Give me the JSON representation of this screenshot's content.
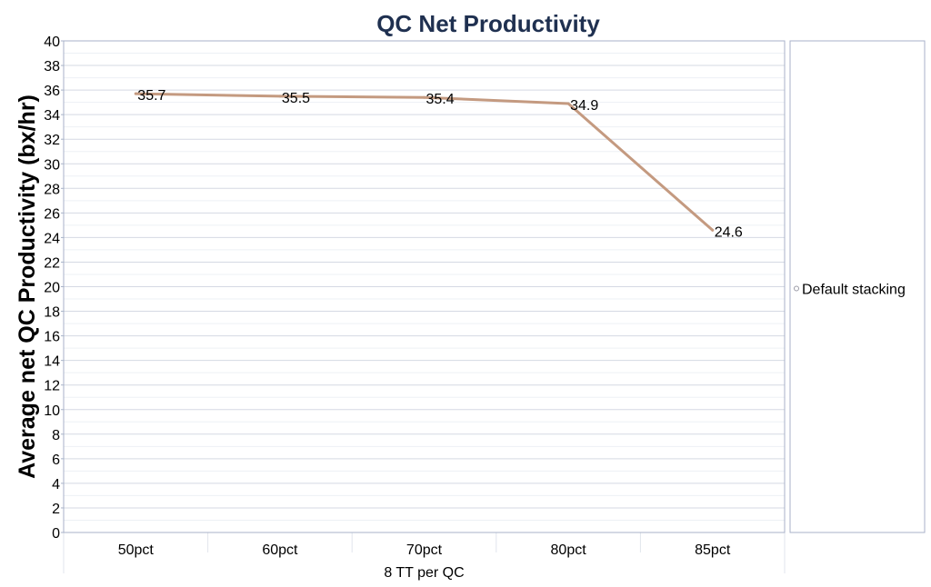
{
  "chart_data": {
    "type": "line",
    "title": "QC Net Productivity",
    "xlabel": "8 TT per QC",
    "ylabel": "Average net QC Productivity (bx/hr)",
    "categories": [
      "50pct",
      "60pct",
      "70pct",
      "80pct",
      "85pct"
    ],
    "series": [
      {
        "name": "Default stacking",
        "values": [
          35.7,
          35.5,
          35.4,
          34.9,
          24.6
        ],
        "color": "#c49a80"
      }
    ],
    "data_labels": [
      "35.7",
      "35.5",
      "35.4",
      "34.9",
      "24.6"
    ],
    "ylim": [
      0,
      40
    ],
    "ytick_step": 2,
    "grid": true,
    "legend_position": "right"
  }
}
